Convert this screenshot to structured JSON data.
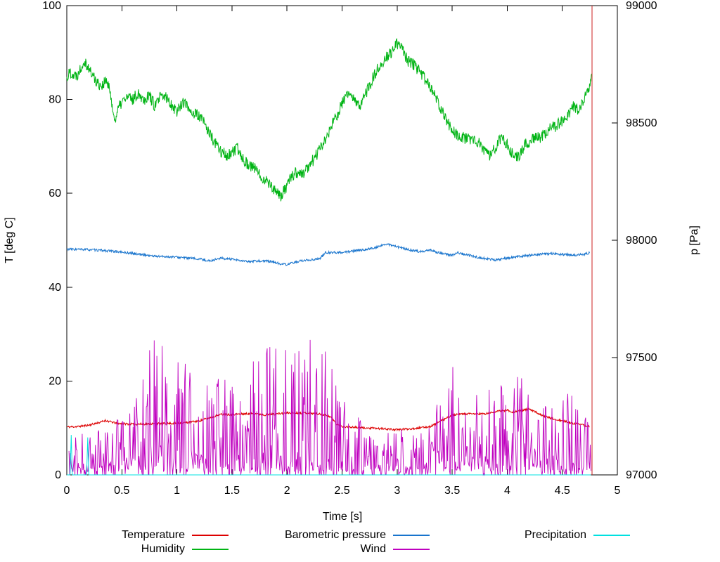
{
  "chart_data": {
    "type": "line",
    "title": "",
    "xlabel": "Time [s]",
    "ylabel_left": "T [deg C]",
    "ylabel_right": "p [Pa]",
    "x_range": [
      0,
      5
    ],
    "y_left_range": [
      0,
      100
    ],
    "y_right_range": [
      97000,
      99000
    ],
    "x_ticks": [
      0,
      0.5,
      1,
      1.5,
      2,
      2.5,
      3,
      3.5,
      4,
      4.5,
      5
    ],
    "x_tick_labels": [
      "0",
      "0.5",
      "1",
      "1.5",
      "2",
      "2.5",
      "3",
      "3.5",
      "4",
      "4.5",
      "5"
    ],
    "y_left_ticks": [
      0,
      20,
      40,
      60,
      80,
      100
    ],
    "y_right_ticks": [
      97000,
      97500,
      98000,
      98500,
      99000
    ],
    "grid": false,
    "background": "#ffffff",
    "legend": {
      "position": "bottom",
      "rows": [
        [
          {
            "label": "Temperature",
            "color": "#dd0000"
          },
          {
            "label": "Barometric pressure",
            "color": "#1874cd"
          },
          {
            "label": "Precipitation",
            "color": "#00e0e0"
          }
        ],
        [
          {
            "label": "Humidity",
            "color": "#00b414"
          },
          {
            "label": "Wind",
            "color": "#bf00bf"
          }
        ]
      ]
    },
    "series": [
      {
        "name": "Temperature",
        "color": "#dd0000",
        "axis": "left",
        "style": "noisy-line",
        "noise": 0.22,
        "seed": 11,
        "keypoints": [
          [
            0,
            10.2
          ],
          [
            0.1,
            10.3
          ],
          [
            0.2,
            10.6
          ],
          [
            0.3,
            11.2
          ],
          [
            0.35,
            11.6
          ],
          [
            0.45,
            11
          ],
          [
            0.6,
            10.8
          ],
          [
            0.8,
            10.9
          ],
          [
            1,
            11
          ],
          [
            1.1,
            11.2
          ],
          [
            1.2,
            11.5
          ],
          [
            1.3,
            12.2
          ],
          [
            1.4,
            12.9
          ],
          [
            1.5,
            12.9
          ],
          [
            1.7,
            13.1
          ],
          [
            1.8,
            12.8
          ],
          [
            2,
            13.2
          ],
          [
            2.2,
            13.2
          ],
          [
            2.35,
            12.8
          ],
          [
            2.4,
            12.3
          ],
          [
            2.45,
            10.8
          ],
          [
            2.5,
            10.3
          ],
          [
            2.7,
            10
          ],
          [
            2.9,
            9.8
          ],
          [
            3,
            9.6
          ],
          [
            3.2,
            10
          ],
          [
            3.3,
            10.3
          ],
          [
            3.4,
            11.5
          ],
          [
            3.5,
            12.7
          ],
          [
            3.6,
            13
          ],
          [
            3.8,
            13
          ],
          [
            3.9,
            13.5
          ],
          [
            4,
            13.8
          ],
          [
            4.05,
            13.4
          ],
          [
            4.2,
            14
          ],
          [
            4.3,
            12.9
          ],
          [
            4.4,
            12
          ],
          [
            4.5,
            11.5
          ],
          [
            4.6,
            11
          ],
          [
            4.75,
            10.3
          ]
        ]
      },
      {
        "name": "Humidity",
        "color": "#00b414",
        "axis": "left",
        "style": "noisy-line",
        "noise": 1.3,
        "seed": 22,
        "keypoints": [
          [
            0,
            84.5
          ],
          [
            0.03,
            86
          ],
          [
            0.07,
            85
          ],
          [
            0.1,
            85.5
          ],
          [
            0.13,
            87
          ],
          [
            0.16,
            88.5
          ],
          [
            0.2,
            86.5
          ],
          [
            0.24,
            85
          ],
          [
            0.28,
            83.5
          ],
          [
            0.32,
            83
          ],
          [
            0.36,
            84
          ],
          [
            0.4,
            81
          ],
          [
            0.43,
            75.5
          ],
          [
            0.47,
            78
          ],
          [
            0.5,
            79.5
          ],
          [
            0.55,
            80.5
          ],
          [
            0.6,
            80
          ],
          [
            0.65,
            81.5
          ],
          [
            0.7,
            80
          ],
          [
            0.75,
            81
          ],
          [
            0.8,
            78.5
          ],
          [
            0.85,
            80.5
          ],
          [
            0.9,
            80.5
          ],
          [
            0.95,
            79
          ],
          [
            1,
            77.5
          ],
          [
            1.05,
            79.5
          ],
          [
            1.1,
            78.5
          ],
          [
            1.15,
            77
          ],
          [
            1.2,
            76.5
          ],
          [
            1.25,
            75
          ],
          [
            1.3,
            72.5
          ],
          [
            1.35,
            70.5
          ],
          [
            1.4,
            69
          ],
          [
            1.45,
            68
          ],
          [
            1.5,
            68.5
          ],
          [
            1.55,
            69.5
          ],
          [
            1.6,
            67.5
          ],
          [
            1.65,
            66
          ],
          [
            1.7,
            65.5
          ],
          [
            1.75,
            64
          ],
          [
            1.8,
            63
          ],
          [
            1.85,
            62
          ],
          [
            1.9,
            60
          ],
          [
            1.95,
            59.5
          ],
          [
            2,
            61.5
          ],
          [
            2.05,
            64
          ],
          [
            2.1,
            64.5
          ],
          [
            2.15,
            64
          ],
          [
            2.2,
            66
          ],
          [
            2.25,
            67.5
          ],
          [
            2.3,
            69.5
          ],
          [
            2.35,
            71.5
          ],
          [
            2.4,
            74
          ],
          [
            2.45,
            76.5
          ],
          [
            2.5,
            79
          ],
          [
            2.55,
            81.5
          ],
          [
            2.6,
            80
          ],
          [
            2.65,
            78.5
          ],
          [
            2.7,
            80.5
          ],
          [
            2.75,
            83
          ],
          [
            2.8,
            85.5
          ],
          [
            2.85,
            87.5
          ],
          [
            2.9,
            89
          ],
          [
            2.95,
            90
          ],
          [
            3,
            92
          ],
          [
            3.05,
            90.5
          ],
          [
            3.1,
            88
          ],
          [
            3.15,
            87.5
          ],
          [
            3.2,
            86
          ],
          [
            3.25,
            84.5
          ],
          [
            3.3,
            82.5
          ],
          [
            3.35,
            80.5
          ],
          [
            3.4,
            78
          ],
          [
            3.45,
            75.5
          ],
          [
            3.5,
            73.5
          ],
          [
            3.55,
            72.5
          ],
          [
            3.6,
            72
          ],
          [
            3.65,
            71.5
          ],
          [
            3.7,
            71
          ],
          [
            3.75,
            70.5
          ],
          [
            3.8,
            69
          ],
          [
            3.85,
            68
          ],
          [
            3.9,
            70
          ],
          [
            3.95,
            72
          ],
          [
            4,
            70.5
          ],
          [
            4.05,
            68.5
          ],
          [
            4.1,
            68
          ],
          [
            4.15,
            70
          ],
          [
            4.2,
            71
          ],
          [
            4.25,
            72
          ],
          [
            4.3,
            72
          ],
          [
            4.35,
            73
          ],
          [
            4.4,
            74
          ],
          [
            4.45,
            74.5
          ],
          [
            4.5,
            75.5
          ],
          [
            4.55,
            76.5
          ],
          [
            4.6,
            78.5
          ],
          [
            4.65,
            77.5
          ],
          [
            4.7,
            80
          ],
          [
            4.73,
            81.5
          ],
          [
            4.77,
            84.5
          ]
        ]
      },
      {
        "name": "Barometric pressure",
        "color": "#1874cd",
        "axis": "right",
        "style": "noisy-line",
        "noise": 5,
        "seed": 33,
        "keypoints": [
          [
            0,
            97962
          ],
          [
            0.2,
            97960
          ],
          [
            0.4,
            97954
          ],
          [
            0.6,
            97944
          ],
          [
            0.8,
            97932
          ],
          [
            1,
            97928
          ],
          [
            1.2,
            97920
          ],
          [
            1.3,
            97912
          ],
          [
            1.4,
            97924
          ],
          [
            1.5,
            97918
          ],
          [
            1.65,
            97908
          ],
          [
            1.75,
            97912
          ],
          [
            1.85,
            97910
          ],
          [
            1.95,
            97898
          ],
          [
            2,
            97896
          ],
          [
            2.1,
            97910
          ],
          [
            2.2,
            97916
          ],
          [
            2.3,
            97922
          ],
          [
            2.35,
            97948
          ],
          [
            2.45,
            97948
          ],
          [
            2.55,
            97950
          ],
          [
            2.7,
            97960
          ],
          [
            2.8,
            97968
          ],
          [
            2.9,
            97984
          ],
          [
            3,
            97972
          ],
          [
            3.1,
            97960
          ],
          [
            3.2,
            97952
          ],
          [
            3.3,
            97958
          ],
          [
            3.4,
            97944
          ],
          [
            3.5,
            97936
          ],
          [
            3.55,
            97948
          ],
          [
            3.7,
            97930
          ],
          [
            3.8,
            97922
          ],
          [
            3.9,
            97916
          ],
          [
            4,
            97924
          ],
          [
            4.1,
            97930
          ],
          [
            4.2,
            97936
          ],
          [
            4.3,
            97940
          ],
          [
            4.4,
            97944
          ],
          [
            4.5,
            97940
          ],
          [
            4.6,
            97936
          ],
          [
            4.7,
            97940
          ],
          [
            4.75,
            97946
          ]
        ]
      },
      {
        "name": "Wind",
        "color": "#bf00bf",
        "axis": "left",
        "style": "spiky",
        "seed": 44,
        "x_start": 0.02,
        "x_end": 4.76,
        "envelope": [
          [
            0,
            8
          ],
          [
            0.3,
            10
          ],
          [
            0.5,
            20
          ],
          [
            0.7,
            26
          ],
          [
            0.9,
            34
          ],
          [
            1,
            26
          ],
          [
            1.2,
            20
          ],
          [
            1.35,
            21
          ],
          [
            1.5,
            23
          ],
          [
            1.7,
            26
          ],
          [
            1.9,
            29
          ],
          [
            2,
            31
          ],
          [
            2.2,
            30
          ],
          [
            2.35,
            28
          ],
          [
            2.5,
            18
          ],
          [
            2.6,
            13
          ],
          [
            2.8,
            11
          ],
          [
            3,
            10
          ],
          [
            3.2,
            11
          ],
          [
            3.35,
            15
          ],
          [
            3.5,
            25
          ],
          [
            3.6,
            18
          ],
          [
            3.7,
            16
          ],
          [
            3.8,
            21
          ],
          [
            3.9,
            22
          ],
          [
            4,
            20
          ],
          [
            4.1,
            22
          ],
          [
            4.2,
            21
          ],
          [
            4.3,
            16
          ],
          [
            4.4,
            15
          ],
          [
            4.5,
            17
          ],
          [
            4.6,
            18
          ],
          [
            4.7,
            15
          ],
          [
            4.76,
            13
          ]
        ]
      },
      {
        "name": "Precipitation",
        "color": "#00e0e0",
        "axis": "left",
        "style": "polyline",
        "points": [
          [
            0,
            0
          ],
          [
            0.03,
            0
          ],
          [
            0.04,
            8.5
          ],
          [
            0.05,
            0
          ],
          [
            0.18,
            0
          ],
          [
            0.19,
            8
          ],
          [
            0.2,
            0
          ],
          [
            1,
            0
          ],
          [
            2,
            0
          ],
          [
            3,
            0
          ],
          [
            4,
            0
          ],
          [
            4.76,
            0
          ]
        ]
      }
    ],
    "event_line": {
      "x": 4.77,
      "y_from": 0,
      "y_to": 100,
      "color": "#cc2222"
    }
  }
}
